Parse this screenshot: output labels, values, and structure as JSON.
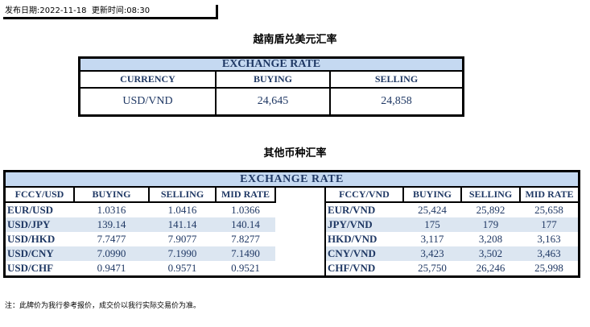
{
  "header": {
    "publish_label": "发布日期:",
    "publish_date": "2022-11-18",
    "update_label": "更新时间:",
    "update_time": "08:30"
  },
  "usd_section": {
    "title": "越南盾兑美元汇率",
    "band": "EXCHANGE RATE",
    "columns": [
      "CURRENCY",
      "BUYING",
      "SELLING"
    ],
    "row": {
      "pair": "USD/VND",
      "buying": "24,645",
      "selling": "24,858"
    }
  },
  "other_section": {
    "title": "其他币种汇率",
    "band": "EXCHANGE  RATE",
    "left_columns": [
      "FCCY/USD",
      "BUYING",
      "SELLING",
      "MID RATE"
    ],
    "right_columns": [
      "FCCY/VND",
      "BUYING",
      "SELLING",
      "MID RATE"
    ],
    "rows": [
      {
        "l": [
          "EUR/USD",
          "1.0316",
          "1.0416",
          "1.0366"
        ],
        "r": [
          "EUR/VND",
          "25,424",
          "25,892",
          "25,658"
        ]
      },
      {
        "l": [
          "USD/JPY",
          "139.14",
          "141.14",
          "140.14"
        ],
        "r": [
          "JPY/VND",
          "175",
          "179",
          "177"
        ]
      },
      {
        "l": [
          "USD/HKD",
          "7.7477",
          "7.9077",
          "7.8277"
        ],
        "r": [
          "HKD/VND",
          "3,117",
          "3,208",
          "3,163"
        ]
      },
      {
        "l": [
          "USD/CNY",
          "7.0990",
          "7.1990",
          "7.1490"
        ],
        "r": [
          "CNY/VND",
          "3,423",
          "3,502",
          "3,463"
        ]
      },
      {
        "l": [
          "USD/CHF",
          "0.9471",
          "0.9571",
          "0.9521"
        ],
        "r": [
          "CHF/VND",
          "25,750",
          "26,246",
          "25,998"
        ]
      }
    ]
  },
  "note": "注：此牌价为我行参考报价，成交价以我行实际交易价为准。",
  "colors": {
    "band": "#c5d9f1",
    "alt_row": "#dce6f1",
    "text": "#1f3864"
  }
}
